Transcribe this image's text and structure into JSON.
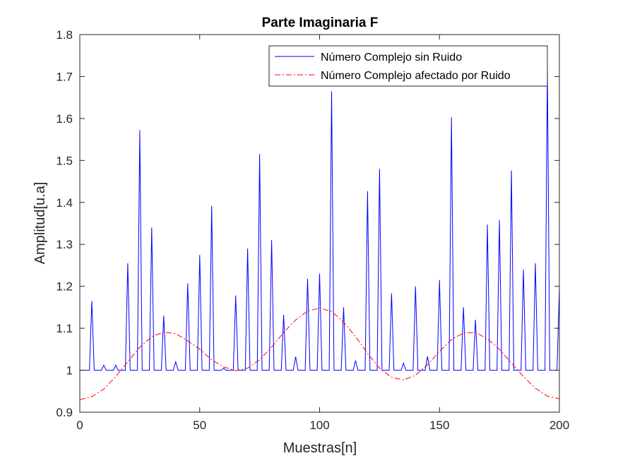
{
  "chart_data": {
    "type": "line",
    "title": "Parte Imaginaria F",
    "xlabel": "Muestras[n]",
    "ylabel": "Amplitud[u.a]",
    "xlim": [
      0,
      200
    ],
    "ylim": [
      0.9,
      1.8
    ],
    "xticks": [
      0,
      50,
      100,
      150,
      200
    ],
    "yticks": [
      0.9,
      1,
      1.1,
      1.2,
      1.3,
      1.4,
      1.5,
      1.6,
      1.7,
      1.8
    ],
    "ytick_labels": [
      "0.9",
      "1",
      "1.1",
      "1.2",
      "1.3",
      "1.4",
      "1.5",
      "1.6",
      "1.7",
      "1.8"
    ],
    "grid": false,
    "legend_position": "top-right",
    "series": [
      {
        "name": "Número Complejo sin Ruido",
        "style": "solid",
        "color": "#0000ff",
        "baseline": 1.0,
        "spike_halfwidth": 1,
        "spikes": [
          {
            "x": 5,
            "y": 1.165
          },
          {
            "x": 10,
            "y": 1.012
          },
          {
            "x": 15,
            "y": 1.012
          },
          {
            "x": 20,
            "y": 1.255
          },
          {
            "x": 25,
            "y": 1.572
          },
          {
            "x": 30,
            "y": 1.34
          },
          {
            "x": 35,
            "y": 1.13
          },
          {
            "x": 40,
            "y": 1.02
          },
          {
            "x": 45,
            "y": 1.207
          },
          {
            "x": 50,
            "y": 1.275
          },
          {
            "x": 55,
            "y": 1.392
          },
          {
            "x": 60,
            "y": 1.005
          },
          {
            "x": 65,
            "y": 1.178
          },
          {
            "x": 70,
            "y": 1.29
          },
          {
            "x": 75,
            "y": 1.515
          },
          {
            "x": 80,
            "y": 1.31
          },
          {
            "x": 85,
            "y": 1.132
          },
          {
            "x": 90,
            "y": 1.032
          },
          {
            "x": 95,
            "y": 1.218
          },
          {
            "x": 100,
            "y": 1.23
          },
          {
            "x": 105,
            "y": 1.665
          },
          {
            "x": 110,
            "y": 1.15
          },
          {
            "x": 115,
            "y": 1.023
          },
          {
            "x": 120,
            "y": 1.427
          },
          {
            "x": 125,
            "y": 1.48
          },
          {
            "x": 130,
            "y": 1.183
          },
          {
            "x": 135,
            "y": 1.017
          },
          {
            "x": 140,
            "y": 1.2
          },
          {
            "x": 145,
            "y": 1.033
          },
          {
            "x": 150,
            "y": 1.215
          },
          {
            "x": 155,
            "y": 1.603
          },
          {
            "x": 160,
            "y": 1.15
          },
          {
            "x": 165,
            "y": 1.12
          },
          {
            "x": 170,
            "y": 1.347
          },
          {
            "x": 175,
            "y": 1.358
          },
          {
            "x": 180,
            "y": 1.476
          },
          {
            "x": 185,
            "y": 1.24
          },
          {
            "x": 190,
            "y": 1.255
          },
          {
            "x": 195,
            "y": 1.72
          },
          {
            "x": 200,
            "y": 1.195
          }
        ]
      },
      {
        "name": "Número Complejo afectado por Ruido",
        "style": "dash-dot",
        "color": "#ff0000",
        "x": [
          0,
          5,
          10,
          15,
          20,
          25,
          30,
          35,
          40,
          45,
          50,
          55,
          60,
          65,
          70,
          75,
          80,
          85,
          90,
          95,
          100,
          105,
          110,
          115,
          120,
          125,
          130,
          135,
          140,
          145,
          150,
          155,
          160,
          165,
          170,
          175,
          180,
          185,
          190,
          195,
          200
        ],
        "y": [
          0.93,
          0.937,
          0.955,
          0.985,
          1.02,
          1.055,
          1.08,
          1.091,
          1.087,
          1.07,
          1.05,
          1.025,
          1.008,
          0.999,
          1.005,
          1.025,
          1.055,
          1.09,
          1.12,
          1.141,
          1.148,
          1.14,
          1.115,
          1.08,
          1.04,
          1.005,
          0.983,
          0.977,
          0.988,
          1.013,
          1.045,
          1.073,
          1.089,
          1.09,
          1.075,
          1.05,
          1.017,
          0.985,
          0.957,
          0.938,
          0.932
        ]
      }
    ]
  }
}
